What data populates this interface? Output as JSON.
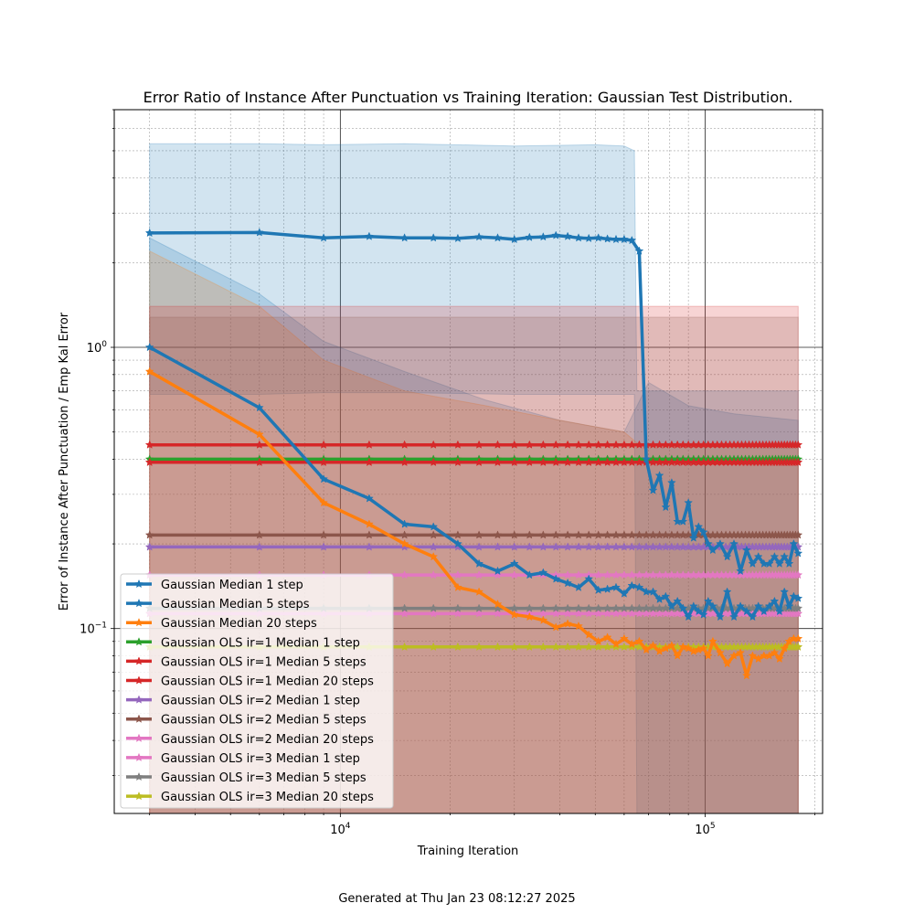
{
  "footer": "Generated at Thu Jan 23 08:12:27 2025",
  "chart_data": {
    "type": "line",
    "title": "Error Ratio of Instance After Punctuation vs Training Iteration: Gaussian Test Distribution.",
    "xlabel": "Training Iteration",
    "ylabel": "Error of Instance After Punctuation / Emp Kal Error",
    "xscale": "log",
    "yscale": "log",
    "xlim": [
      2400,
      210000
    ],
    "ylim": [
      0.022,
      7.0
    ],
    "x_ticks": [
      {
        "value": 10000,
        "base": "10",
        "exp": "4"
      },
      {
        "value": 100000,
        "base": "10",
        "exp": "5"
      }
    ],
    "y_ticks": [
      {
        "value": 0.1,
        "base": "10",
        "exp": "−1"
      },
      {
        "value": 1,
        "base": "10",
        "exp": "0"
      }
    ],
    "grid": true,
    "legend_position": "lower left",
    "bands": [
      {
        "name": "Gaussian Median 1 step",
        "color": "#1f77b4",
        "x": [
          3000,
          6000,
          9000,
          15000,
          30000,
          50000,
          60000,
          64000,
          65000,
          66000,
          180000
        ],
        "upper": [
          5.3,
          5.3,
          5.25,
          5.3,
          5.2,
          5.25,
          5.2,
          5.0,
          0.7,
          0.7,
          0.7
        ],
        "lower": [
          0.68,
          0.68,
          0.69,
          0.69,
          0.68,
          0.68,
          0.68,
          0.68,
          0.022,
          0.022,
          0.022
        ]
      },
      {
        "name": "Gaussian Median 5 steps",
        "color": "#1f77b4",
        "x": [
          3000,
          6000,
          9000,
          15000,
          25000,
          40000,
          60000,
          70000,
          90000,
          120000,
          180000
        ],
        "upper": [
          2.45,
          1.55,
          1.05,
          0.82,
          0.65,
          0.55,
          0.5,
          0.75,
          0.62,
          0.58,
          0.55
        ],
        "lower": [
          0.022,
          0.022,
          0.022,
          0.022,
          0.022,
          0.022,
          0.022,
          0.022,
          0.022,
          0.022,
          0.022
        ]
      },
      {
        "name": "Gaussian Median 20 steps",
        "color": "#ff7f0e",
        "x": [
          3000,
          6000,
          9000,
          15000,
          25000,
          40000,
          60000,
          66000,
          180000
        ],
        "upper": [
          2.2,
          1.4,
          0.9,
          0.7,
          0.62,
          0.55,
          0.5,
          0.45,
          0.45
        ],
        "lower": [
          0.022,
          0.022,
          0.022,
          0.022,
          0.022,
          0.022,
          0.022,
          0.022,
          0.022
        ]
      },
      {
        "name": "Gaussian OLS ir=1",
        "color": "#d62728",
        "x": [
          3000,
          180000
        ],
        "upper": [
          1.4,
          1.4
        ],
        "lower": [
          0.022,
          0.022
        ]
      },
      {
        "name": "Gaussian OLS ir=2",
        "color": "#8c564b",
        "x": [
          3000,
          180000
        ],
        "upper": [
          1.28,
          1.28
        ],
        "lower": [
          0.022,
          0.022
        ]
      }
    ],
    "series": [
      {
        "name": "Gaussian Median 1 step",
        "color": "#1f77b4",
        "x": [
          3000,
          6000,
          9000,
          12000,
          15000,
          18000,
          21000,
          24000,
          27000,
          30000,
          33000,
          36000,
          39000,
          42000,
          45000,
          48000,
          51000,
          54000,
          57000,
          60000,
          63000,
          66000,
          69000,
          72000,
          75000,
          78000,
          81000,
          84000,
          87000,
          90000,
          93000,
          96000,
          99000,
          102000,
          105000,
          110000,
          115000,
          120000,
          125000,
          130000,
          135000,
          140000,
          145000,
          150000,
          155000,
          160000,
          165000,
          170000,
          175000,
          180000
        ],
        "y": [
          2.55,
          2.56,
          2.45,
          2.48,
          2.45,
          2.45,
          2.44,
          2.47,
          2.45,
          2.42,
          2.46,
          2.47,
          2.5,
          2.48,
          2.45,
          2.44,
          2.45,
          2.43,
          2.42,
          2.42,
          2.4,
          2.2,
          0.4,
          0.31,
          0.35,
          0.27,
          0.33,
          0.24,
          0.24,
          0.28,
          0.21,
          0.23,
          0.22,
          0.2,
          0.19,
          0.2,
          0.18,
          0.2,
          0.16,
          0.19,
          0.17,
          0.18,
          0.17,
          0.17,
          0.18,
          0.17,
          0.18,
          0.17,
          0.2,
          0.185
        ]
      },
      {
        "name": "Gaussian Median 5 steps",
        "color": "#1f77b4",
        "x": [
          3000,
          6000,
          9000,
          12000,
          15000,
          18000,
          21000,
          24000,
          27000,
          30000,
          33000,
          36000,
          39000,
          42000,
          45000,
          48000,
          51000,
          54000,
          57000,
          60000,
          63000,
          66000,
          69000,
          72000,
          75000,
          78000,
          81000,
          84000,
          87000,
          90000,
          93000,
          96000,
          99000,
          102000,
          105000,
          110000,
          115000,
          120000,
          125000,
          130000,
          135000,
          140000,
          145000,
          150000,
          155000,
          160000,
          165000,
          170000,
          175000,
          180000
        ],
        "y": [
          1.0,
          0.61,
          0.34,
          0.29,
          0.235,
          0.23,
          0.2,
          0.17,
          0.16,
          0.17,
          0.155,
          0.158,
          0.15,
          0.145,
          0.14,
          0.15,
          0.137,
          0.138,
          0.14,
          0.133,
          0.142,
          0.14,
          0.135,
          0.135,
          0.127,
          0.13,
          0.12,
          0.125,
          0.118,
          0.11,
          0.12,
          0.115,
          0.112,
          0.125,
          0.12,
          0.11,
          0.135,
          0.11,
          0.12,
          0.115,
          0.11,
          0.12,
          0.115,
          0.12,
          0.125,
          0.115,
          0.135,
          0.12,
          0.13,
          0.128
        ]
      },
      {
        "name": "Gaussian Median 20 steps",
        "color": "#ff7f0e",
        "x": [
          3000,
          6000,
          9000,
          12000,
          15000,
          18000,
          21000,
          24000,
          27000,
          30000,
          33000,
          36000,
          39000,
          42000,
          45000,
          48000,
          51000,
          54000,
          57000,
          60000,
          63000,
          66000,
          69000,
          72000,
          75000,
          78000,
          81000,
          84000,
          87000,
          90000,
          93000,
          96000,
          99000,
          102000,
          105000,
          110000,
          115000,
          120000,
          125000,
          130000,
          135000,
          140000,
          145000,
          150000,
          155000,
          160000,
          165000,
          170000,
          175000,
          180000
        ],
        "y": [
          0.82,
          0.49,
          0.28,
          0.235,
          0.2,
          0.18,
          0.14,
          0.135,
          0.122,
          0.112,
          0.11,
          0.107,
          0.101,
          0.104,
          0.102,
          0.095,
          0.09,
          0.093,
          0.088,
          0.092,
          0.088,
          0.09,
          0.084,
          0.087,
          0.083,
          0.085,
          0.087,
          0.08,
          0.086,
          0.085,
          0.083,
          0.084,
          0.085,
          0.08,
          0.09,
          0.082,
          0.075,
          0.08,
          0.082,
          0.068,
          0.08,
          0.078,
          0.08,
          0.08,
          0.082,
          0.078,
          0.085,
          0.09,
          0.092,
          0.092
        ]
      },
      {
        "name": "Gaussian OLS ir=1 Median 1 step",
        "color": "#2ca02c",
        "const": 0.4
      },
      {
        "name": "Gaussian OLS ir=1 Median 5 steps",
        "color": "#d62728",
        "const": 0.39
      },
      {
        "name": "Gaussian OLS ir=1 Median 20 steps",
        "color": "#d62728",
        "const": 0.45
      },
      {
        "name": "Gaussian OLS ir=2 Median 1 step",
        "color": "#9467bd",
        "const": 0.195
      },
      {
        "name": "Gaussian OLS ir=2 Median 5 steps",
        "color": "#8c564b",
        "const": 0.215
      },
      {
        "name": "Gaussian OLS ir=2 Median 20 steps",
        "color": "#e377c2",
        "const": 0.155
      },
      {
        "name": "Gaussian OLS ir=3 Median 1 step",
        "color": "#e377c2",
        "const": 0.113
      },
      {
        "name": "Gaussian OLS ir=3 Median 5 steps",
        "color": "#7f7f7f",
        "const": 0.118
      },
      {
        "name": "Gaussian OLS ir=3 Median 20 steps",
        "color": "#bcbd22",
        "const": 0.086
      }
    ]
  }
}
